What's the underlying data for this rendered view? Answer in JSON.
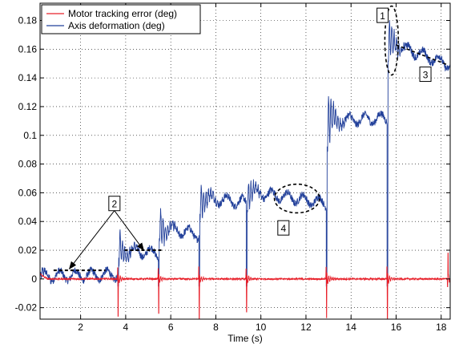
{
  "chart_data": {
    "type": "line",
    "title": "",
    "xlabel": "Time (s)",
    "ylabel": "",
    "xlim": [
      0.2,
      18.4
    ],
    "ylim": [
      -0.028,
      0.192
    ],
    "x_ticks": [
      2,
      4,
      6,
      8,
      10,
      12,
      14,
      16,
      18
    ],
    "x_tick_labels": [
      "2",
      "4",
      "6",
      "8",
      "10",
      "12",
      "14",
      "16",
      "18"
    ],
    "y_ticks": [
      -0.02,
      0,
      0.02,
      0.04,
      0.06,
      0.08,
      0.1,
      0.12,
      0.14,
      0.16,
      0.18
    ],
    "y_tick_labels": [
      "-0.02",
      "0",
      "0.02",
      "0.04",
      "0.06",
      "0.08",
      "0.1",
      "0.12",
      "0.14",
      "0.16",
      "0.18"
    ],
    "grid": true,
    "legend_position": "top-left",
    "series": [
      {
        "name": "Motor tracking error (deg)",
        "color": "#e8202a",
        "steps": [
          {
            "t": 0.2,
            "base": 0.004,
            "spike": 0.0,
            "decay": 0.0
          },
          {
            "t": 3.65,
            "base": 0.0,
            "spike": -0.026,
            "decay": 0.004
          },
          {
            "t": 5.45,
            "base": 0.0,
            "spike": -0.024,
            "decay": 0.004
          },
          {
            "t": 7.25,
            "base": 0.0,
            "spike": -0.028,
            "decay": 0.004
          },
          {
            "t": 9.35,
            "base": 0.0,
            "spike": -0.023,
            "decay": 0.004
          },
          {
            "t": 12.9,
            "base": 0.0,
            "spike": -0.027,
            "decay": 0.006
          },
          {
            "t": 15.6,
            "base": 0.0,
            "spike": -0.028,
            "decay": 0.005
          },
          {
            "t": 18.3,
            "base": 0.0,
            "spike": 0.018,
            "decay": 0.004
          }
        ]
      },
      {
        "name": "Axis deformation (deg)",
        "color": "#22409a",
        "steps": [
          {
            "t": 0.2,
            "end": 3.65,
            "level": 0.002,
            "peak": 0.005,
            "level_end": 0.003
          },
          {
            "t": 3.65,
            "end": 5.45,
            "level": 0.02,
            "peak": 0.035,
            "level_end": 0.018
          },
          {
            "t": 5.45,
            "end": 7.25,
            "level": 0.036,
            "peak": 0.052,
            "level_end": 0.031
          },
          {
            "t": 7.25,
            "end": 9.35,
            "level": 0.057,
            "peak": 0.073,
            "level_end": 0.053
          },
          {
            "t": 9.35,
            "end": 12.9,
            "level": 0.061,
            "peak": 0.075,
            "level_end": 0.053
          },
          {
            "t": 12.9,
            "end": 15.6,
            "level": 0.11,
            "peak": 0.133,
            "level_end": 0.112
          },
          {
            "t": 15.6,
            "end": 18.4,
            "level": 0.165,
            "peak": 0.183,
            "level_end": 0.149
          }
        ]
      }
    ],
    "annotations": [
      {
        "label": "1",
        "type": "ellipse",
        "cx": 15.8,
        "cy": 0.166,
        "rx": 0.3,
        "ry": 0.024,
        "label_x": 15.4,
        "label_y": 0.183
      },
      {
        "label": "2",
        "type": "arrows",
        "label_x": 3.5,
        "label_y": 0.052,
        "targets": [
          [
            1.5,
            0.007
          ],
          [
            4.8,
            0.02
          ]
        ]
      },
      {
        "label": "3",
        "type": "dashed-line",
        "from": [
          16.0,
          0.163
        ],
        "to": [
          18.3,
          0.149
        ],
        "label_x": 17.3,
        "label_y": 0.142
      },
      {
        "label": "4",
        "type": "ellipse",
        "cx": 11.6,
        "cy": 0.056,
        "rx": 1.0,
        "ry": 0.01,
        "label_x": 11.0,
        "label_y": 0.035
      }
    ],
    "dashed_markers": [
      {
        "from": [
          0.8,
          0.006
        ],
        "to": [
          3.1,
          0.006
        ]
      },
      {
        "from": [
          3.95,
          0.02
        ],
        "to": [
          5.6,
          0.02
        ]
      }
    ]
  }
}
